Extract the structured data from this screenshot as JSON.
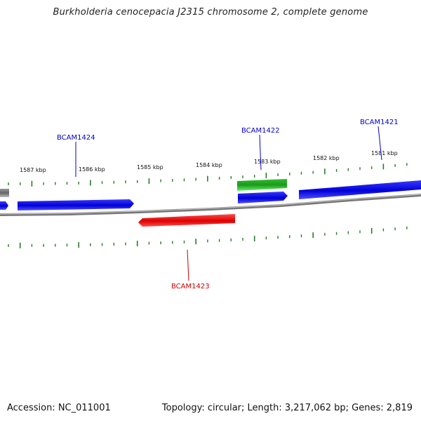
{
  "title": "Burkholderia cenocepacia J2315 chromosome 2, complete genome",
  "footer": {
    "accession": "Accession: NC_011001",
    "summary": "Topology: circular; Length: 3,217,062 bp; Genes: 2,819"
  },
  "colors": {
    "forward_gene": "#0000e0",
    "reverse_gene": "#e00000",
    "rna_gene": "#22bb22",
    "backbone": "#888888",
    "tick": "#2a7a2a",
    "label_forward": "#0000cc",
    "label_reverse": "#cc0000"
  },
  "kbp_labels": [
    "1587 kbp",
    "1586 kbp",
    "1585 kbp",
    "1584 kbp",
    "1583 kbp",
    "1582 kbp",
    "1581 kbp"
  ],
  "genes": [
    {
      "label": "BCAM1424",
      "strand": "forward"
    },
    {
      "label": "BCAM1422",
      "strand": "forward"
    },
    {
      "label": "BCAM1421",
      "strand": "forward"
    },
    {
      "label": "BCAM1423",
      "strand": "reverse"
    }
  ]
}
